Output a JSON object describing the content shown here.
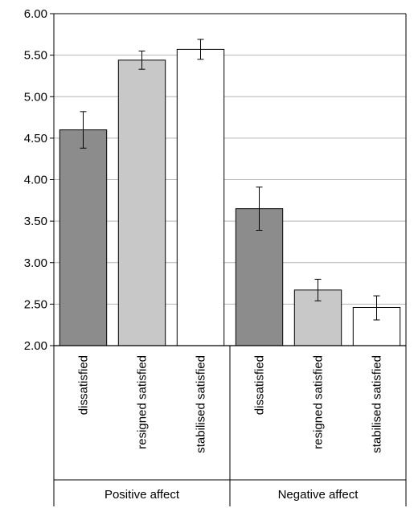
{
  "chart_data": {
    "type": "bar",
    "ylim": [
      2.0,
      6.0
    ],
    "y_ticks": [
      "2.00",
      "2.50",
      "3.00",
      "3.50",
      "4.00",
      "4.50",
      "5.00",
      "5.50",
      "6.00"
    ],
    "y_tick_values": [
      2.0,
      2.5,
      3.0,
      3.5,
      4.0,
      4.5,
      5.0,
      5.5,
      6.0
    ],
    "grid": true,
    "groups": [
      {
        "label": "Positive affect",
        "bars": [
          {
            "category": "dissatisfied",
            "value": 4.6,
            "error_low": 4.38,
            "error_high": 4.82,
            "color": "#8c8c8c"
          },
          {
            "category": "resigned satisfied",
            "value": 5.44,
            "error_low": 5.33,
            "error_high": 5.55,
            "color": "#c8c8c8"
          },
          {
            "category": "stabilised satisfied",
            "value": 5.57,
            "error_low": 5.45,
            "error_high": 5.69,
            "color": "#ffffff"
          }
        ]
      },
      {
        "label": "Negative affect",
        "bars": [
          {
            "category": "dissatisfied",
            "value": 3.65,
            "error_low": 3.39,
            "error_high": 3.91,
            "color": "#8c8c8c"
          },
          {
            "category": "resigned satisfied",
            "value": 2.67,
            "error_low": 2.54,
            "error_high": 2.8,
            "color": "#c8c8c8"
          },
          {
            "category": "stabilised satisfied",
            "value": 2.46,
            "error_low": 2.31,
            "error_high": 2.6,
            "color": "#ffffff"
          }
        ]
      }
    ]
  }
}
